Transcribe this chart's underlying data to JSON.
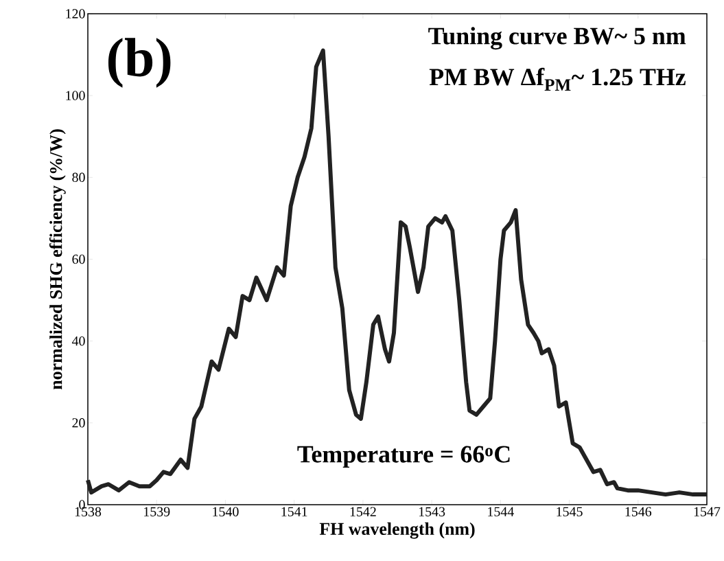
{
  "chart_data": {
    "type": "line",
    "xlabel": "FH wavelength (nm)",
    "ylabel": "normalized SHG efficiency (%/W)",
    "annotations": [
      "(b)",
      "Tuning curve BW~ 5 nm",
      "PM BW Δf$_{PM}$~ 1.25 THz",
      "Temperature = 66$^{o}$C"
    ],
    "xlim": [
      1538,
      1547
    ],
    "xticks": [
      1538,
      1539,
      1540,
      1541,
      1542,
      1543,
      1544,
      1545,
      1546,
      1547
    ],
    "ylim": [
      0,
      120
    ],
    "yticks": [
      0,
      20,
      40,
      60,
      80,
      100,
      120
    ],
    "grid": false,
    "marker": "none",
    "line_style": "solid",
    "series": [
      {
        "color": "#222222",
        "x": [
          1538.0,
          1538.05,
          1538.2,
          1538.3,
          1538.45,
          1538.6,
          1538.75,
          1538.9,
          1539.0,
          1539.1,
          1539.2,
          1539.35,
          1539.45,
          1539.55,
          1539.65,
          1539.8,
          1539.9,
          1540.05,
          1540.15,
          1540.25,
          1540.35,
          1540.45,
          1540.6,
          1540.75,
          1540.85,
          1540.95,
          1541.05,
          1541.15,
          1541.25,
          1541.32,
          1541.42,
          1541.5,
          1541.6,
          1541.7,
          1541.8,
          1541.9,
          1541.97,
          1542.05,
          1542.15,
          1542.22,
          1542.32,
          1542.38,
          1542.45,
          1542.55,
          1542.62,
          1542.68,
          1542.8,
          1542.88,
          1542.95,
          1543.05,
          1543.15,
          1543.2,
          1543.3,
          1543.4,
          1543.5,
          1543.55,
          1543.65,
          1543.75,
          1543.85,
          1543.92,
          1544.0,
          1544.05,
          1544.15,
          1544.22,
          1544.3,
          1544.4,
          1544.48,
          1544.55,
          1544.6,
          1544.7,
          1544.78,
          1544.85,
          1544.95,
          1545.05,
          1545.15,
          1545.25,
          1545.35,
          1545.45,
          1545.55,
          1545.65,
          1545.7,
          1545.85,
          1546.0,
          1546.2,
          1546.4,
          1546.6,
          1546.8,
          1547.0
        ],
        "values": [
          6,
          3,
          4.5,
          5,
          3.5,
          5.5,
          4.5,
          4.5,
          6,
          8,
          7.5,
          11,
          9,
          21,
          24,
          35,
          33,
          43,
          41,
          51,
          50,
          55.5,
          50,
          58,
          56,
          73,
          80,
          85,
          92,
          107,
          111,
          90,
          58,
          48,
          28,
          22,
          21,
          30,
          44,
          46,
          38,
          35,
          42,
          69,
          68,
          63,
          52,
          58,
          68,
          70,
          69,
          70.5,
          67,
          50,
          30,
          23,
          22,
          24,
          26,
          40,
          60,
          67,
          69,
          72,
          55,
          44,
          42,
          40,
          37,
          38,
          34,
          24,
          25,
          15,
          14,
          11,
          8,
          8.5,
          5,
          5.5,
          4,
          3.5,
          3.5,
          3,
          2.5,
          3,
          2.5,
          2.5
        ]
      }
    ]
  }
}
